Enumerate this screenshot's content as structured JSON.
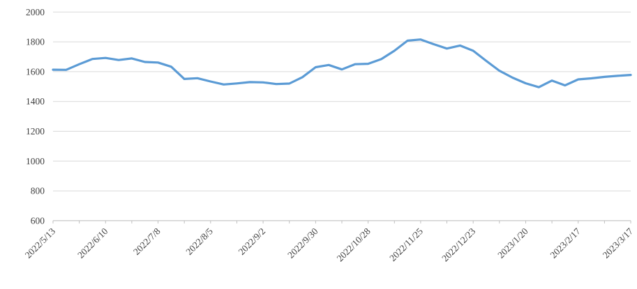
{
  "chart_data": {
    "type": "line",
    "title": "",
    "xlabel": "",
    "ylabel": "",
    "legend": false,
    "grid": true,
    "ylim": [
      600,
      2000
    ],
    "y_ticks": [
      600,
      800,
      1000,
      1200,
      1400,
      1600,
      1800,
      2000
    ],
    "x_tick_mark_interval": 2,
    "x_tick_label_interval": 4,
    "x": [
      "2022/5/13",
      "2022/5/20",
      "2022/5/27",
      "2022/6/3",
      "2022/6/10",
      "2022/6/17",
      "2022/6/24",
      "2022/7/1",
      "2022/7/8",
      "2022/7/15",
      "2022/7/22",
      "2022/7/29",
      "2022/8/5",
      "2022/8/12",
      "2022/8/19",
      "2022/8/26",
      "2022/9/2",
      "2022/9/9",
      "2022/9/16",
      "2022/9/23",
      "2022/9/30",
      "2022/10/7",
      "2022/10/14",
      "2022/10/21",
      "2022/10/28",
      "2022/11/4",
      "2022/11/11",
      "2022/11/18",
      "2022/11/25",
      "2022/12/2",
      "2022/12/9",
      "2022/12/16",
      "2022/12/23",
      "2022/12/30",
      "2023/1/6",
      "2023/1/13",
      "2023/1/20",
      "2023/1/27",
      "2023/2/3",
      "2023/2/10",
      "2023/2/17",
      "2023/2/24",
      "2023/3/3",
      "2023/3/10",
      "2023/3/17"
    ],
    "values": [
      1613,
      1612,
      1650,
      1685,
      1692,
      1678,
      1689,
      1665,
      1661,
      1633,
      1551,
      1556,
      1534,
      1514,
      1521,
      1530,
      1528,
      1517,
      1520,
      1563,
      1630,
      1645,
      1615,
      1650,
      1653,
      1684,
      1740,
      1808,
      1816,
      1784,
      1755,
      1775,
      1740,
      1672,
      1606,
      1560,
      1522,
      1496,
      1540,
      1508,
      1548,
      1555,
      1565,
      1572,
      1578
    ],
    "x_axis_labels_shown": [
      "2022/5/13",
      "2022/6/10",
      "2022/7/8",
      "2022/8/5",
      "2022/9/2",
      "2022/9/30",
      "2022/10/28",
      "2022/11/25",
      "2022/12/23",
      "2023/1/20",
      "2023/2/17",
      "2023/3/17"
    ],
    "colors": {
      "line": "#5B9BD5",
      "gridline": "#D9D9D9",
      "axis": "#BFBFBF",
      "tick_label": "#404040",
      "background": "#FFFFFF"
    }
  }
}
